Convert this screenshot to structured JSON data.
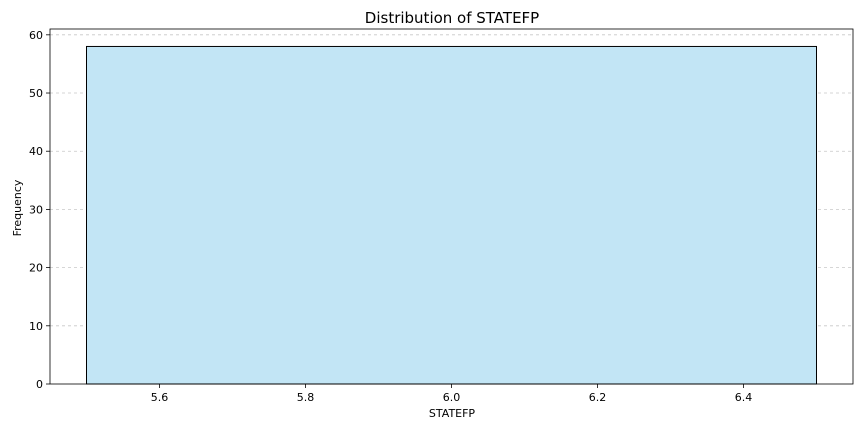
{
  "chart_data": {
    "type": "bar",
    "title": "Distribution of STATEFP",
    "xlabel": "STATEFP",
    "ylabel": "Frequency",
    "bins": [
      {
        "x0": 5.5,
        "x1": 6.5,
        "count": 58
      }
    ],
    "xlim": [
      5.45,
      6.55
    ],
    "ylim": [
      0,
      61
    ],
    "xticks": [
      5.6,
      5.8,
      6.0,
      6.2,
      6.4
    ],
    "xtick_labels": [
      "5.6",
      "5.8",
      "6.0",
      "6.2",
      "6.4"
    ],
    "yticks": [
      0,
      10,
      20,
      30,
      40,
      50,
      60
    ],
    "ytick_labels": [
      "0",
      "10",
      "20",
      "30",
      "40",
      "50",
      "60"
    ],
    "grid": true,
    "colors": {
      "bar_fill": "#c2e5f5",
      "bar_edge": "#000000",
      "grid": "#c8c8c8",
      "axis": "#000000"
    }
  }
}
